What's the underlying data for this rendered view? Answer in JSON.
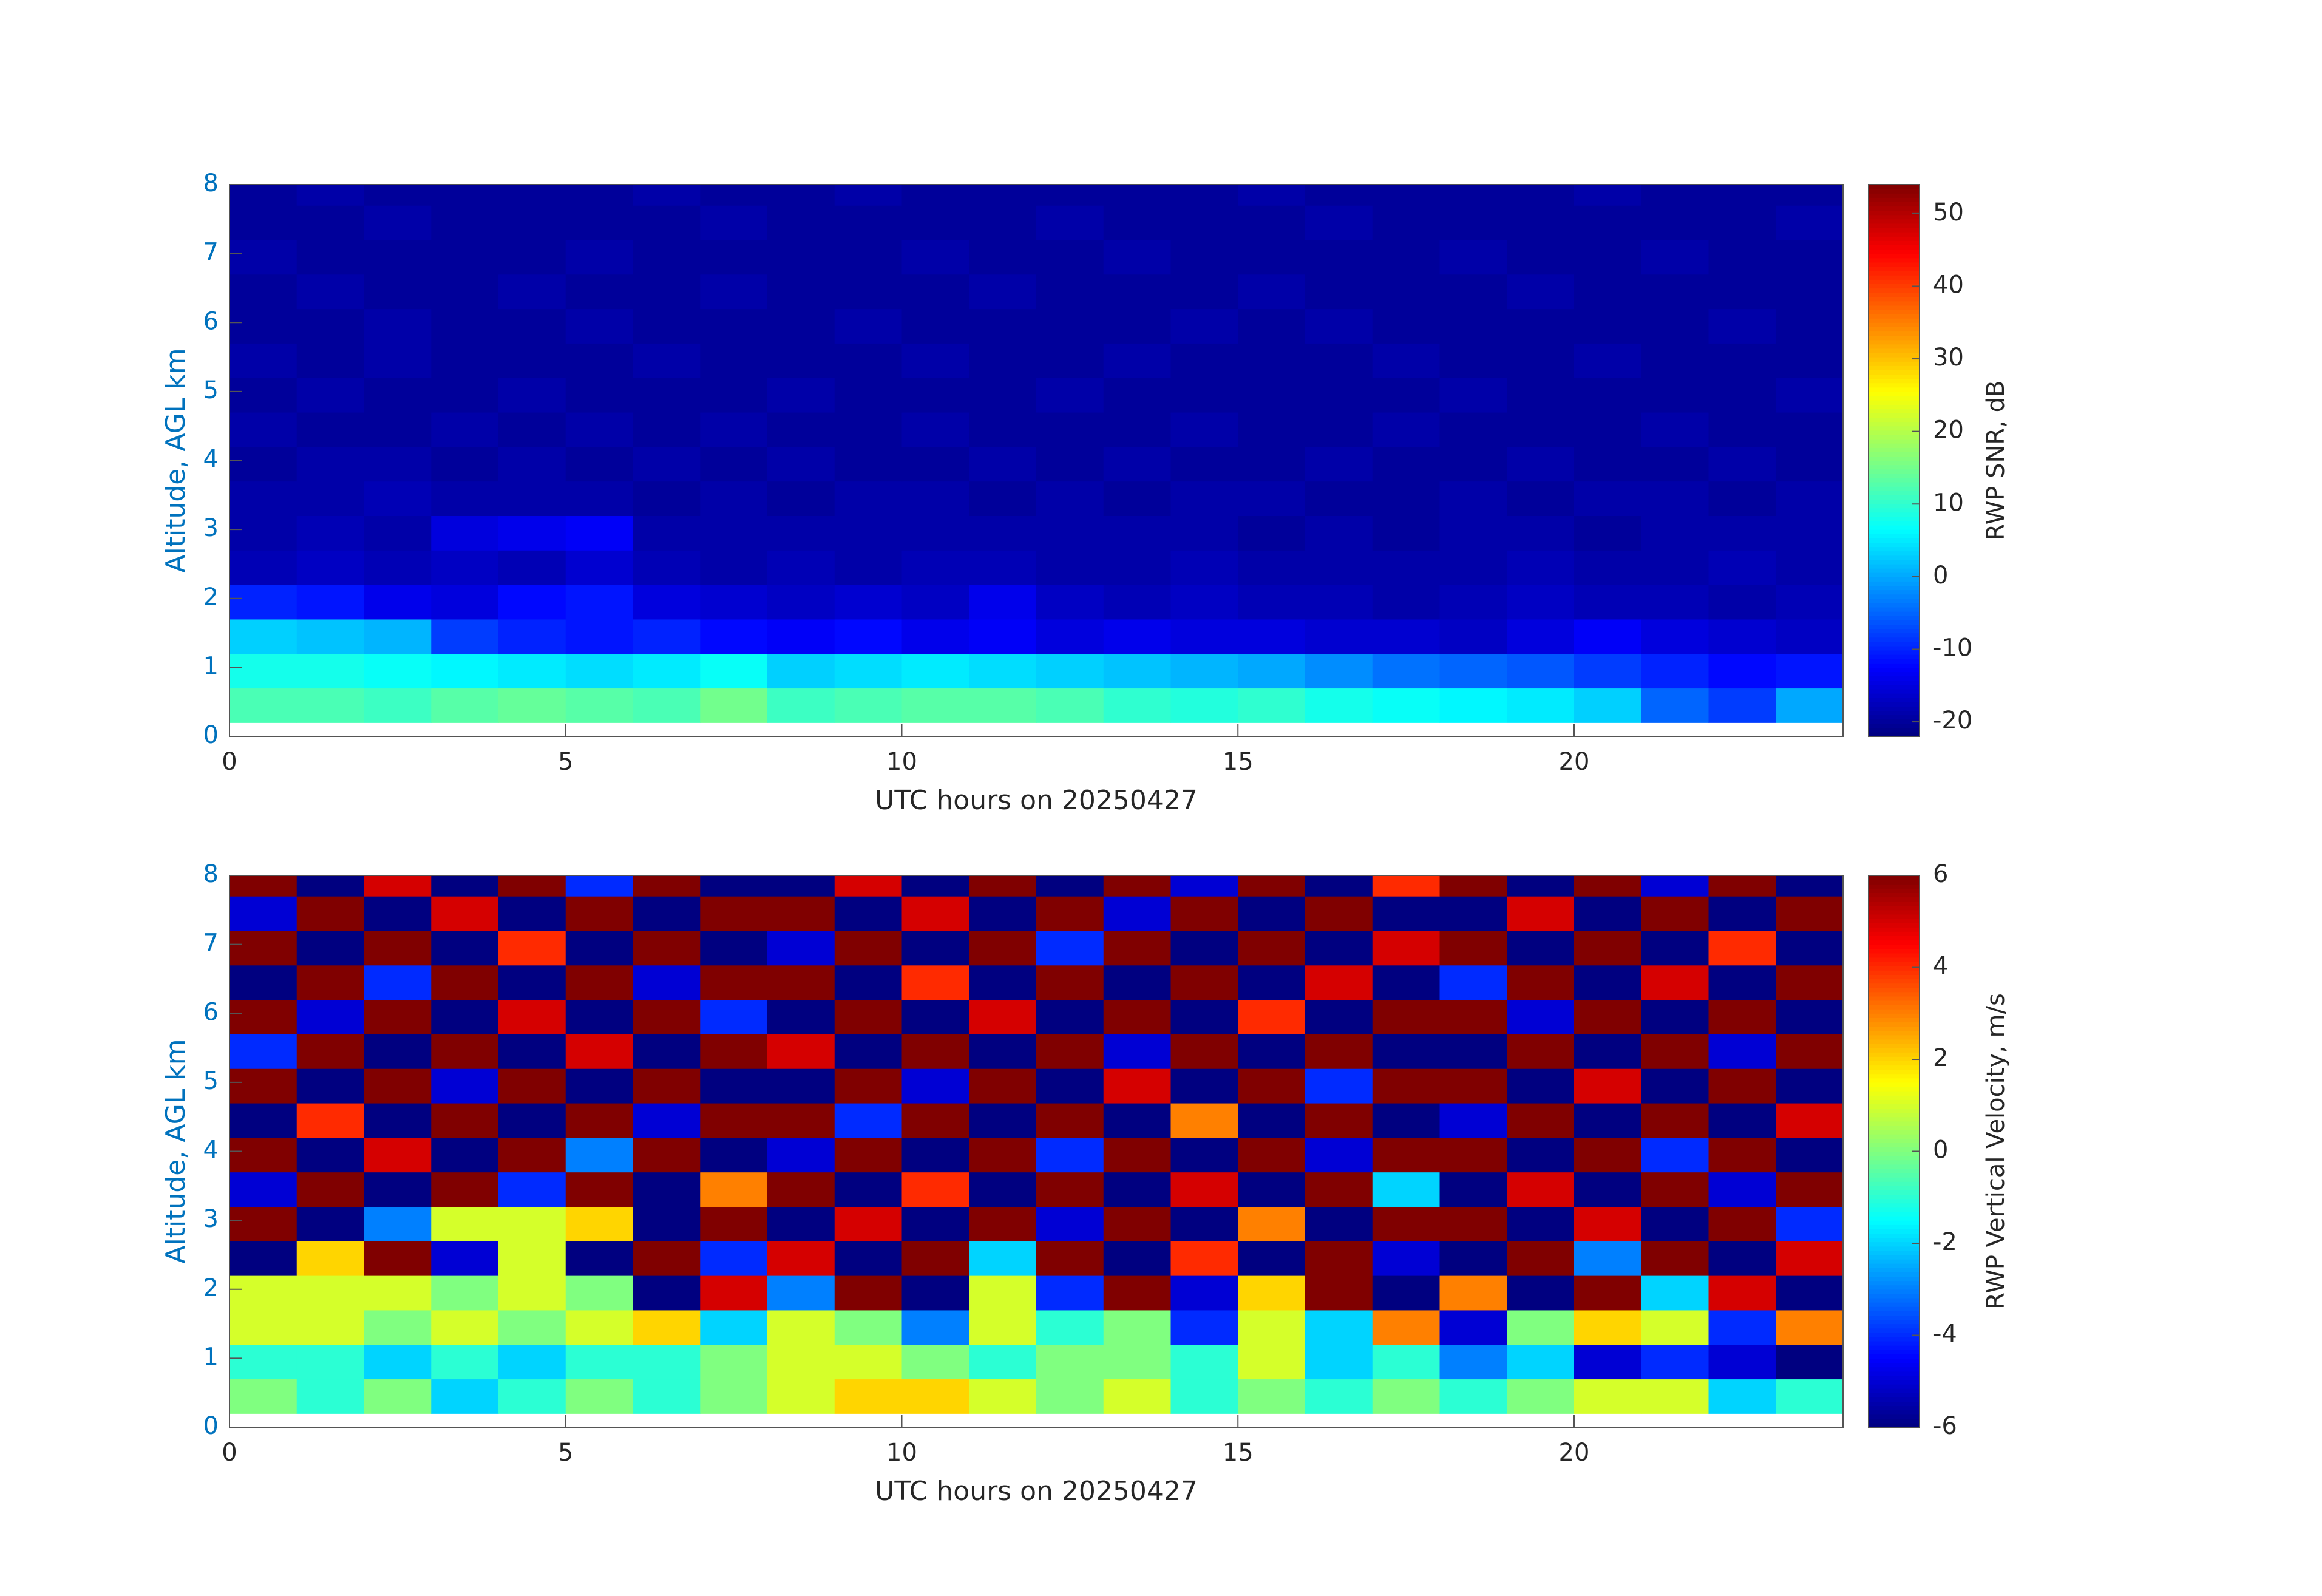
{
  "chart_data": [
    {
      "type": "heatmap",
      "colormap": "jet",
      "xlabel": "UTC hours on 20250427",
      "ylabel": "Altitude, AGL km",
      "colorbar_label": "RWP SNR, dB",
      "xlim": [
        0,
        24
      ],
      "xticks": [
        0,
        5,
        10,
        15,
        20
      ],
      "ylim": [
        0,
        8
      ],
      "yticks": [
        0,
        1,
        2,
        3,
        4,
        5,
        6,
        7,
        8
      ],
      "clim": [
        -22,
        54
      ],
      "cticks": [
        -20,
        -10,
        0,
        10,
        20,
        30,
        40,
        50
      ],
      "xbins": [
        0,
        1,
        2,
        3,
        4,
        5,
        6,
        7,
        8,
        9,
        10,
        11,
        12,
        13,
        14,
        15,
        16,
        17,
        18,
        19,
        20,
        21,
        22,
        23,
        24
      ],
      "ybins": [
        0.2,
        0.7,
        1.2,
        1.7,
        2.2,
        2.7,
        3.2,
        3.7,
        4.2,
        4.7,
        5.2,
        5.7,
        6.2,
        6.7,
        7.2,
        7.7,
        8
      ],
      "values": [
        [
          12,
          12,
          11,
          13,
          14,
          13,
          12,
          15,
          11,
          12,
          13,
          13,
          12,
          10,
          9,
          10,
          8,
          7,
          6,
          5,
          3,
          -5,
          -8,
          0
        ],
        [
          8,
          8,
          7,
          6,
          5,
          4,
          5,
          7,
          3,
          4,
          5,
          4,
          3,
          2,
          1,
          0,
          -2,
          -4,
          -5,
          -6,
          -8,
          -10,
          -12,
          -11
        ],
        [
          3,
          2,
          1,
          -8,
          -10,
          -11,
          -10,
          -12,
          -13,
          -12,
          -14,
          -13,
          -15,
          -14,
          -15,
          -15,
          -16,
          -16,
          -17,
          -15,
          -13,
          -15,
          -16,
          -17
        ],
        [
          -10,
          -11,
          -14,
          -15,
          -12,
          -11,
          -15,
          -16,
          -17,
          -16,
          -17,
          -14,
          -17,
          -18,
          -17,
          -18,
          -18,
          -19,
          -18,
          -17,
          -18,
          -18,
          -19,
          -18
        ],
        [
          -18,
          -17,
          -18,
          -17,
          -18,
          -16,
          -18,
          -19,
          -18,
          -19,
          -18,
          -18,
          -19,
          -19,
          -18,
          -19,
          -19,
          -19,
          -19,
          -18,
          -19,
          -19,
          -18,
          -19
        ],
        [
          -19,
          -18,
          -19,
          -15,
          -14,
          -13,
          -19,
          -19,
          -19,
          -19,
          -19,
          -19,
          -19,
          -19,
          -19,
          -20,
          -19,
          -20,
          -19,
          -19,
          -20,
          -19,
          -19,
          -19
        ],
        [
          -19,
          -19,
          -18,
          -19,
          -19,
          -19,
          -20,
          -19,
          -20,
          -19,
          -19,
          -20,
          -19,
          -20,
          -19,
          -19,
          -20,
          -20,
          -19,
          -20,
          -19,
          -19,
          -20,
          -19
        ],
        [
          -20,
          -19,
          -19,
          -20,
          -19,
          -20,
          -19,
          -20,
          -19,
          -20,
          -20,
          -19,
          -20,
          -19,
          -20,
          -20,
          -19,
          -20,
          -20,
          -19,
          -20,
          -20,
          -19,
          -20
        ],
        [
          -19,
          -20,
          -20,
          -19,
          -20,
          -19,
          -20,
          -19,
          -20,
          -20,
          -19,
          -20,
          -20,
          -20,
          -19,
          -20,
          -20,
          -19,
          -20,
          -20,
          -20,
          -19,
          -20,
          -20
        ],
        [
          -20,
          -19,
          -20,
          -20,
          -19,
          -20,
          -20,
          -20,
          -19,
          -20,
          -20,
          -20,
          -19,
          -20,
          -20,
          -20,
          -20,
          -20,
          -19,
          -20,
          -20,
          -20,
          -20,
          -19
        ],
        [
          -19,
          -20,
          -19,
          -20,
          -20,
          -20,
          -19,
          -20,
          -20,
          -20,
          -19,
          -20,
          -20,
          -19,
          -20,
          -20,
          -20,
          -19,
          -20,
          -20,
          -19,
          -20,
          -20,
          -20
        ],
        [
          -20,
          -20,
          -19,
          -20,
          -20,
          -19,
          -20,
          -20,
          -20,
          -19,
          -20,
          -20,
          -20,
          -20,
          -19,
          -20,
          -19,
          -20,
          -20,
          -20,
          -20,
          -20,
          -19,
          -20
        ],
        [
          -20,
          -19,
          -20,
          -20,
          -19,
          -20,
          -20,
          -19,
          -20,
          -20,
          -20,
          -19,
          -20,
          -20,
          -20,
          -19,
          -20,
          -20,
          -20,
          -19,
          -20,
          -20,
          -20,
          -20
        ],
        [
          -19,
          -20,
          -20,
          -20,
          -20,
          -19,
          -20,
          -20,
          -20,
          -20,
          -19,
          -20,
          -20,
          -19,
          -20,
          -20,
          -20,
          -20,
          -19,
          -20,
          -20,
          -19,
          -20,
          -20
        ],
        [
          -20,
          -20,
          -19,
          -20,
          -20,
          -20,
          -20,
          -19,
          -20,
          -20,
          -20,
          -20,
          -19,
          -20,
          -20,
          -20,
          -19,
          -20,
          -20,
          -20,
          -20,
          -20,
          -20,
          -19
        ],
        [
          -20,
          -19,
          -20,
          -20,
          -20,
          -20,
          -19,
          -20,
          -20,
          -19,
          -20,
          -20,
          -20,
          -20,
          -20,
          -19,
          -20,
          -20,
          -20,
          -20,
          -19,
          -20,
          -20,
          -20
        ]
      ]
    },
    {
      "type": "heatmap",
      "colormap": "jet",
      "xlabel": "UTC hours on 20250427",
      "ylabel": "Altitude, AGL km",
      "colorbar_label": "RWP Vertical Velocity, m/s",
      "xlim": [
        0,
        24
      ],
      "xticks": [
        0,
        5,
        10,
        15,
        20
      ],
      "ylim": [
        0,
        8
      ],
      "yticks": [
        0,
        1,
        2,
        3,
        4,
        5,
        6,
        7,
        8
      ],
      "clim": [
        -6,
        6
      ],
      "cticks": [
        -6,
        -4,
        -2,
        0,
        2,
        4,
        6
      ],
      "xbins": [
        0,
        1,
        2,
        3,
        4,
        5,
        6,
        7,
        8,
        9,
        10,
        11,
        12,
        13,
        14,
        15,
        16,
        17,
        18,
        19,
        20,
        21,
        22,
        23,
        24
      ],
      "ybins": [
        0.2,
        0.7,
        1.2,
        1.7,
        2.2,
        2.7,
        3.2,
        3.7,
        4.2,
        4.7,
        5.2,
        5.7,
        6.2,
        6.7,
        7.2,
        7.7,
        8
      ],
      "values": [
        [
          0,
          -1,
          0,
          -2,
          -1,
          0,
          -1,
          0,
          1,
          2,
          2,
          1,
          0,
          1,
          -1,
          0,
          -1,
          0,
          -1,
          0,
          1,
          1,
          -2,
          -1
        ],
        [
          -1,
          -1,
          -2,
          -1,
          -2,
          -1,
          -1,
          0,
          1,
          1,
          0,
          -1,
          0,
          0,
          -1,
          1,
          -2,
          -1,
          -3,
          -2,
          -5,
          -4,
          -5,
          -6
        ],
        [
          1,
          1,
          0,
          1,
          0,
          1,
          2,
          -2,
          1,
          0,
          -3,
          1,
          -1,
          0,
          -4,
          1,
          -2,
          3,
          -5,
          0,
          2,
          1,
          -4,
          3
        ],
        [
          1,
          1,
          1,
          0,
          1,
          0,
          -6,
          5,
          -3,
          6,
          -6,
          1,
          -4,
          6,
          -5,
          2,
          6,
          -6,
          3,
          -6,
          6,
          -2,
          5,
          -6
        ],
        [
          -6,
          2,
          6,
          -5,
          1,
          -6,
          6,
          -4,
          5,
          -6,
          6,
          -2,
          6,
          -6,
          4,
          -6,
          6,
          -5,
          -6,
          6,
          -3,
          6,
          -6,
          5
        ],
        [
          6,
          -6,
          -3,
          1,
          1,
          2,
          -6,
          6,
          -6,
          5,
          -6,
          6,
          -5,
          6,
          -6,
          3,
          -6,
          6,
          6,
          -6,
          5,
          -6,
          6,
          -4
        ],
        [
          -5,
          6,
          -6,
          6,
          -4,
          6,
          -6,
          3,
          6,
          -6,
          4,
          -6,
          6,
          -6,
          5,
          -6,
          6,
          -2,
          -6,
          5,
          -6,
          6,
          -5,
          6
        ],
        [
          6,
          -6,
          5,
          -6,
          6,
          -3,
          6,
          -6,
          -5,
          6,
          -6,
          6,
          -4,
          6,
          -6,
          6,
          -5,
          6,
          6,
          -6,
          6,
          -4,
          6,
          -6
        ],
        [
          -6,
          4,
          -6,
          6,
          -6,
          6,
          -5,
          6,
          6,
          -4,
          6,
          -6,
          6,
          -6,
          3,
          -6,
          6,
          -6,
          -5,
          6,
          -6,
          6,
          -6,
          5
        ],
        [
          6,
          -6,
          6,
          -5,
          6,
          -6,
          6,
          -6,
          -6,
          6,
          -5,
          6,
          -6,
          5,
          -6,
          6,
          -4,
          6,
          6,
          -6,
          5,
          -6,
          6,
          -6
        ],
        [
          -4,
          6,
          -6,
          6,
          -6,
          5,
          -6,
          6,
          5,
          -6,
          6,
          -6,
          6,
          -5,
          6,
          -6,
          6,
          -6,
          -6,
          6,
          -6,
          6,
          -5,
          6
        ],
        [
          6,
          -5,
          6,
          -6,
          5,
          -6,
          6,
          -4,
          -6,
          6,
          -6,
          5,
          -6,
          6,
          -6,
          4,
          -6,
          6,
          6,
          -5,
          6,
          -6,
          6,
          -6
        ],
        [
          -6,
          6,
          -4,
          6,
          -6,
          6,
          -5,
          6,
          6,
          -6,
          4,
          -6,
          6,
          -6,
          6,
          -6,
          5,
          -6,
          -4,
          6,
          -6,
          5,
          -6,
          6
        ],
        [
          6,
          -6,
          6,
          -6,
          4,
          -6,
          6,
          -6,
          -5,
          6,
          -6,
          6,
          -4,
          6,
          -6,
          6,
          -6,
          5,
          6,
          -6,
          6,
          -6,
          4,
          -6
        ],
        [
          -5,
          6,
          -6,
          5,
          -6,
          6,
          -6,
          6,
          6,
          -6,
          5,
          -6,
          6,
          -5,
          6,
          -6,
          6,
          -6,
          -6,
          5,
          -6,
          6,
          -6,
          6
        ],
        [
          6,
          -6,
          5,
          -6,
          6,
          -4,
          6,
          -6,
          -6,
          5,
          -6,
          6,
          -6,
          6,
          -5,
          6,
          -6,
          4,
          6,
          -6,
          6,
          -5,
          6,
          -6
        ]
      ]
    }
  ]
}
